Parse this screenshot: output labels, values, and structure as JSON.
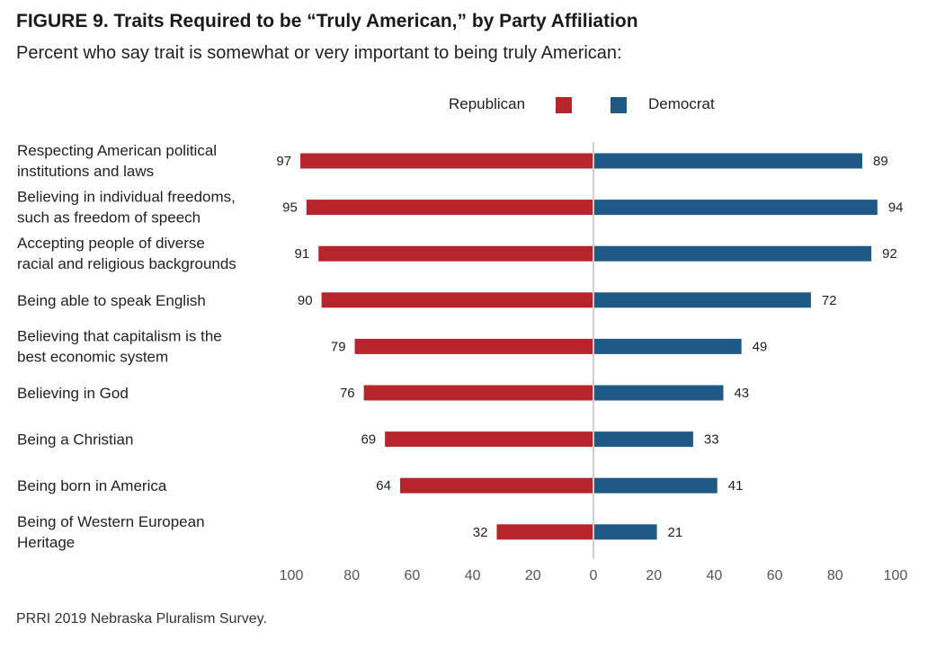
{
  "title": "FIGURE 9.  Traits Required to be “Truly American,” by Party Affiliation",
  "subtitle": "Percent who say trait is somewhat or very important to being truly American:",
  "source": "PRRI 2019 Nebraska Pluralism Survey.",
  "colors": {
    "republican": "#b5252b",
    "democrat": "#1e5a85",
    "axis": "#cfcfcf",
    "tick": "#555555"
  },
  "chart_data": {
    "type": "bar",
    "orientation": "horizontal-diverging",
    "categories": [
      [
        "Respecting American political",
        "institutions and laws"
      ],
      [
        "Believing in individual freedoms,",
        "such as freedom of speech"
      ],
      [
        "Accepting people of diverse",
        "racial and religious backgrounds"
      ],
      [
        "Being able to speak English"
      ],
      [
        "Believing that capitalism is the",
        "best economic system"
      ],
      [
        "Believing in God"
      ],
      [
        "Being a Christian"
      ],
      [
        "Being born in America"
      ],
      [
        "Being of Western European",
        "Heritage"
      ]
    ],
    "series": [
      {
        "name": "Republican",
        "side": "left",
        "values": [
          97,
          95,
          91,
          90,
          79,
          76,
          69,
          64,
          32
        ]
      },
      {
        "name": "Democrat",
        "side": "right",
        "values": [
          89,
          94,
          92,
          72,
          49,
          43,
          33,
          41,
          21
        ]
      }
    ],
    "xlim": [
      0,
      100
    ],
    "ticks": [
      "100",
      "80",
      "60",
      "40",
      "20",
      "0",
      "20",
      "40",
      "60",
      "80",
      "100"
    ],
    "legend_position": "top-center",
    "grid": false
  }
}
